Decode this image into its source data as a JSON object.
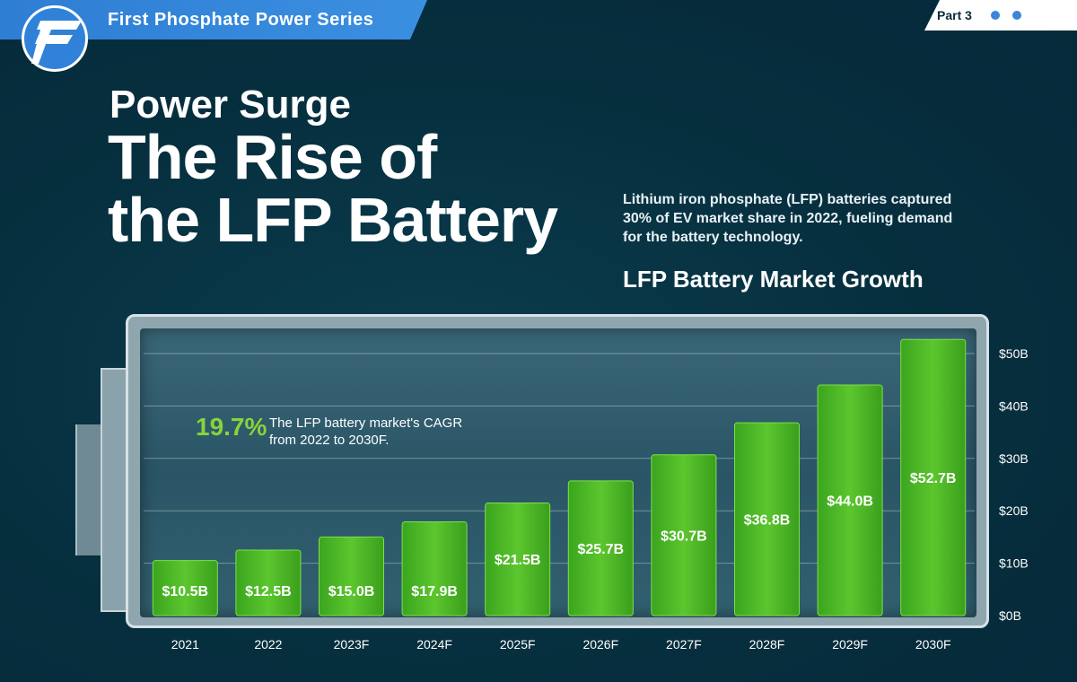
{
  "header": {
    "series_title": "First Phosphate Power Series",
    "part_label": "Part 3",
    "dots": [
      "#3b86d6",
      "#3b86d6",
      "#ffffff"
    ]
  },
  "headline": {
    "small": "Power Surge",
    "big_line1": "The Rise of",
    "big_line2": "the LFP Battery"
  },
  "description": "Lithium iron phosphate (LFP) batteries captured 30% of EV market share in 2022, fueling demand for the battery technology.",
  "callout": {
    "value": "19.7%",
    "text": "The LFP battery market's CAGR from 2022 to 2030F."
  },
  "colors": {
    "background": "#062f3e",
    "accent_blue": "#2e7ed4",
    "bar_green": "#5cc62e",
    "callout_green": "#8ad23a"
  },
  "chart_data": {
    "type": "bar",
    "title": "LFP Battery Market Growth",
    "xlabel": "",
    "ylabel": "",
    "categories": [
      "2021",
      "2022",
      "2023F",
      "2024F",
      "2025F",
      "2026F",
      "2027F",
      "2028F",
      "2029F",
      "2030F"
    ],
    "values": [
      10.5,
      12.5,
      15.0,
      17.9,
      21.5,
      25.7,
      30.7,
      36.8,
      44.0,
      52.7
    ],
    "data_labels": [
      "$10.5B",
      "$12.5B",
      "$15.0B",
      "$17.9B",
      "$21.5B",
      "$25.7B",
      "$30.7B",
      "$36.8B",
      "$44.0B",
      "$52.7B"
    ],
    "yticks": [
      0,
      10,
      20,
      30,
      40,
      50
    ],
    "ytick_labels": [
      "$0B",
      "$10B",
      "$20B",
      "$30B",
      "$40B",
      "$50B"
    ],
    "ylim": [
      0,
      55
    ],
    "grid": true,
    "y_axis_side": "right"
  }
}
